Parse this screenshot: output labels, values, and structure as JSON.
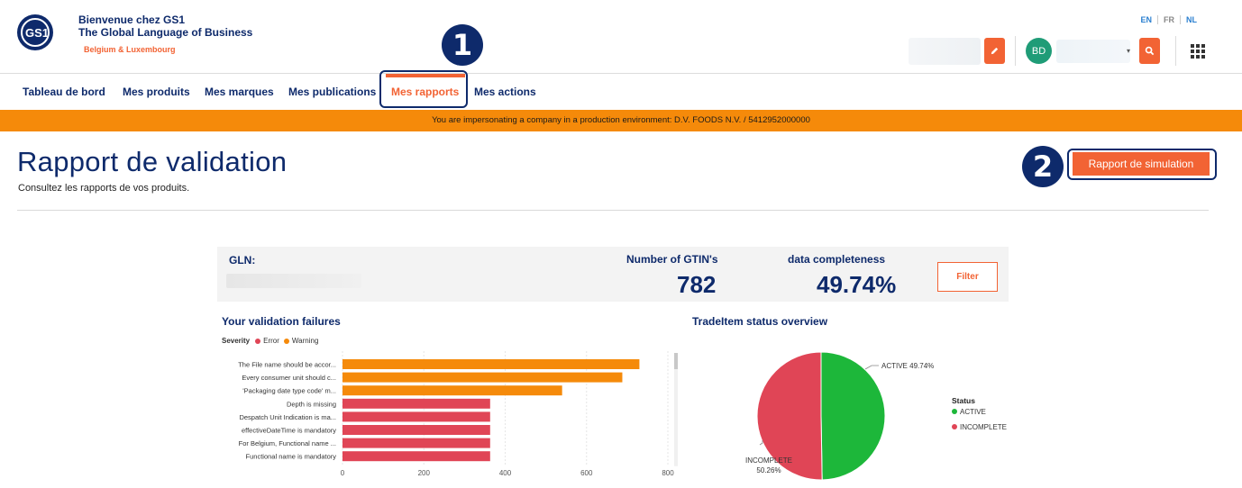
{
  "header": {
    "logo_text": "GS1",
    "brand_line1": "Bienvenue chez GS1",
    "brand_line2": "The Global Language of Business",
    "brand_line3": "Belgium & Luxembourg",
    "languages": [
      "EN",
      "FR",
      "NL"
    ],
    "active_language": "EN",
    "avatar_initials": "BD",
    "icons": [
      "edit-icon",
      "search-icon",
      "apps-grid-icon"
    ]
  },
  "nav": {
    "items": [
      "Tableau de bord",
      "Mes produits",
      "Mes marques",
      "Mes publications",
      "Mes rapports",
      "Mes actions"
    ],
    "active": "Mes rapports"
  },
  "callouts": [
    "1",
    "2"
  ],
  "banner": "You are impersonating a company in a production environment: D.V. FOODS N.V. / 5412952000000",
  "page": {
    "title": "Rapport de validation",
    "subtitle": "Consultez les rapports de vos produits.",
    "simulation_button": "Rapport de simulation"
  },
  "kpis": {
    "gln_label": "GLN:",
    "gtin_label": "Number of GTIN's",
    "gtin_value": "782",
    "completeness_label": "data completeness",
    "completeness_value": "49.74%",
    "filter_button": "Filter"
  },
  "colors": {
    "accent": "#f26334",
    "navy": "#0e2a6b",
    "banner": "#f58a0a",
    "error": "#e04556",
    "warning": "#f58a0a",
    "active": "#1db73a",
    "incomplete": "#e04556"
  },
  "chart_data": [
    {
      "type": "bar",
      "orientation": "horizontal",
      "title": "Your validation failures",
      "legend_title": "Severity",
      "legend": [
        {
          "name": "Error",
          "color": "#e04556"
        },
        {
          "name": "Warning",
          "color": "#f58a0a"
        }
      ],
      "categories": [
        "The File name should be accor...",
        "Every consumer unit should c...",
        "'Packaging date type code' m...",
        "Depth is missing",
        "Despatch Unit Indication is ma...",
        "effectiveDateTime is mandatory",
        "For Belgium, Functional name ...",
        "Functional name is mandatory"
      ],
      "values": [
        730,
        688,
        540,
        363,
        363,
        363,
        363,
        363
      ],
      "severity": [
        "Warning",
        "Warning",
        "Warning",
        "Error",
        "Error",
        "Error",
        "Error",
        "Error"
      ],
      "xticks": [
        0,
        200,
        400,
        600,
        800
      ],
      "xlim": [
        0,
        800
      ],
      "grid": true
    },
    {
      "type": "pie",
      "title": "TradeItem status overview",
      "legend_title": "Status",
      "slices": [
        {
          "name": "ACTIVE",
          "value": 49.74,
          "label": "ACTIVE 49.74%",
          "color": "#1db73a"
        },
        {
          "name": "INCOMPLETE",
          "value": 50.26,
          "label_line1": "INCOMPLETE",
          "label_line2": "50.26%",
          "color": "#e04556"
        }
      ],
      "legend_placement": "right"
    }
  ]
}
